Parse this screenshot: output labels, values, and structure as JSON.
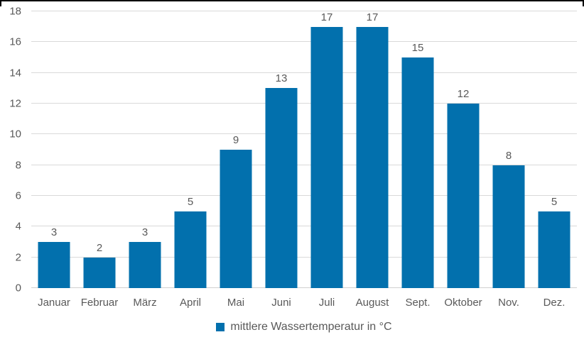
{
  "chart_data": {
    "type": "bar",
    "title": "",
    "categories": [
      "Januar",
      "Februar",
      "März",
      "April",
      "Mai",
      "Juni",
      "Juli",
      "August",
      "Sept.",
      "Oktober",
      "Nov.",
      "Dez."
    ],
    "values": [
      3,
      2,
      3,
      5,
      9,
      13,
      17,
      17,
      15,
      12,
      8,
      5
    ],
    "data_labels": [
      "3",
      "2",
      "3",
      "5",
      "9",
      "13",
      "17",
      "17",
      "15",
      "12",
      "8",
      "5"
    ],
    "legend": "mittlere Wassertemperatur in °C",
    "legend_position": "bottom-center",
    "xlabel": "",
    "ylabel": "",
    "ylim": [
      0,
      18
    ],
    "ytick_step": 2,
    "grid": "horizontal",
    "colors": {
      "bar": "#0270ad",
      "gridline": "#d9d9d9",
      "axis_text": "#595959",
      "data_label_text": "#595959",
      "frame_border": "#000000",
      "background": "#ffffff"
    }
  }
}
